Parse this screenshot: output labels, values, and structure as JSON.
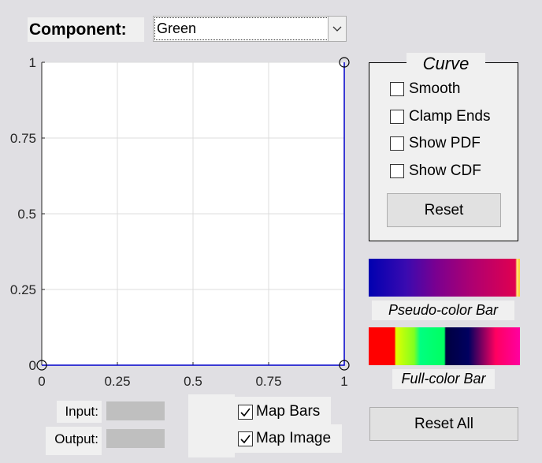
{
  "component": {
    "label": "Component:",
    "selected": "Green"
  },
  "plot": {
    "x_ticks": [
      "0",
      "0.25",
      "0.5",
      "0.75",
      "1"
    ],
    "y_ticks": [
      "0",
      "0.25",
      "0.5",
      "0.75",
      "1"
    ],
    "curve_color": "#0000cc",
    "grid": true,
    "control_points": [
      [
        0,
        0
      ],
      [
        1,
        0
      ],
      [
        1,
        1
      ]
    ]
  },
  "curve_panel": {
    "title": "Curve",
    "options": [
      {
        "label": "Smooth",
        "checked": false
      },
      {
        "label": "Clamp Ends",
        "checked": false
      },
      {
        "label": "Show PDF",
        "checked": false
      },
      {
        "label": "Show CDF",
        "checked": false
      }
    ],
    "reset_label": "Reset"
  },
  "color_bars": {
    "pseudo_label": "Pseudo-color Bar",
    "full_label": "Full-color Bar"
  },
  "io": {
    "input_label": "Input:",
    "output_label": "Output:",
    "input_value": "",
    "output_value": ""
  },
  "map_options": {
    "map_bars_label": "Map Bars",
    "map_bars_checked": true,
    "map_image_label": "Map Image",
    "map_image_checked": true
  },
  "reset_all_label": "Reset All"
}
